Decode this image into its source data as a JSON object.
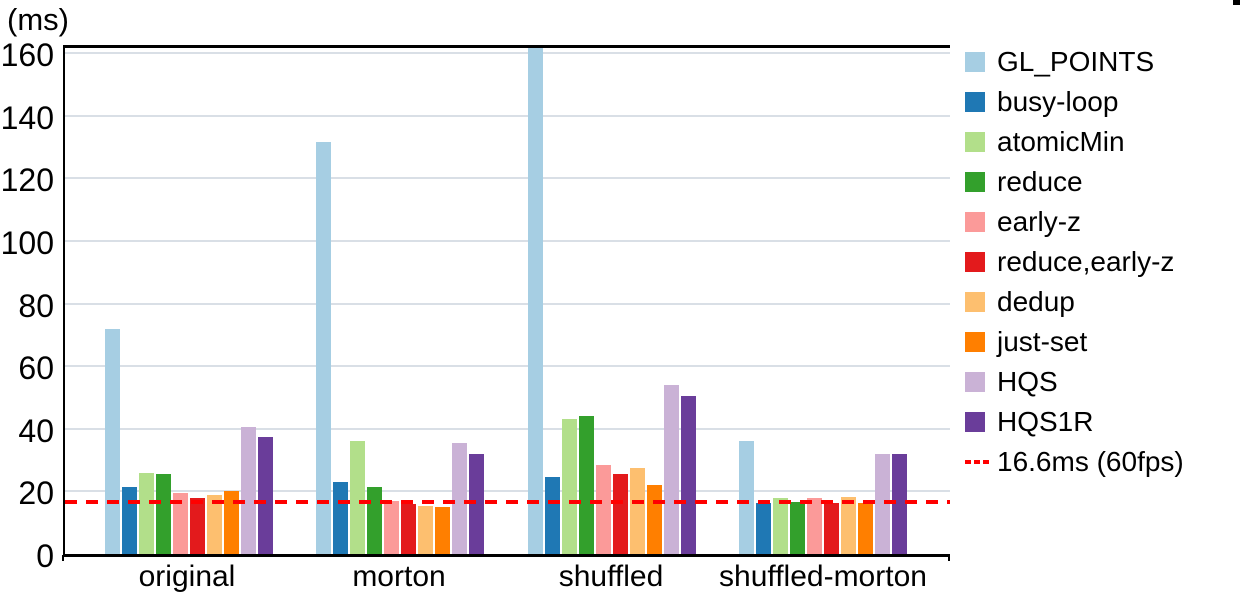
{
  "chart_data": {
    "type": "bar",
    "title": "",
    "ylabel": "(ms)",
    "xlabel": "",
    "ylim": [
      0,
      162
    ],
    "yticks": [
      0,
      20,
      40,
      60,
      80,
      100,
      120,
      140,
      160
    ],
    "grid": true,
    "legend_position": "right",
    "categories": [
      "original",
      "morton",
      "shuffled",
      "shuffled-morton"
    ],
    "series": [
      {
        "name": "GL_POINTS",
        "color": "#a6cee3",
        "values": [
          72,
          131.5,
          162,
          36
        ]
      },
      {
        "name": "busy-loop",
        "color": "#1f78b4",
        "values": [
          21.5,
          23,
          24.5,
          16.3
        ]
      },
      {
        "name": "atomicMin",
        "color": "#b2df8a",
        "values": [
          26,
          36,
          43,
          18
        ]
      },
      {
        "name": "reduce",
        "color": "#33a02c",
        "values": [
          25.5,
          21.5,
          44,
          16.6
        ]
      },
      {
        "name": "early-z",
        "color": "#fb9a99",
        "values": [
          19.5,
          17,
          28.5,
          17.8
        ]
      },
      {
        "name": "reduce,early-z",
        "color": "#e31a1c",
        "values": [
          18,
          16,
          25.5,
          16.4
        ]
      },
      {
        "name": "dedup",
        "color": "#fdbf6f",
        "values": [
          19,
          15.5,
          27.5,
          18.2
        ]
      },
      {
        "name": "just-set",
        "color": "#ff7f00",
        "values": [
          20,
          15,
          22,
          16.3
        ]
      },
      {
        "name": "HQS",
        "color": "#cab2d6",
        "values": [
          40.5,
          35.5,
          54,
          32
        ]
      },
      {
        "name": "HQS1R",
        "color": "#6a3d9a",
        "values": [
          37.5,
          32,
          50.5,
          32
        ]
      }
    ],
    "reference_line": {
      "value": 16.6,
      "label": "16.6ms (60fps)",
      "color": "#ff0000",
      "style": "dashed"
    },
    "grid_color": "#d9dfe6",
    "axis_color": "#000000"
  }
}
